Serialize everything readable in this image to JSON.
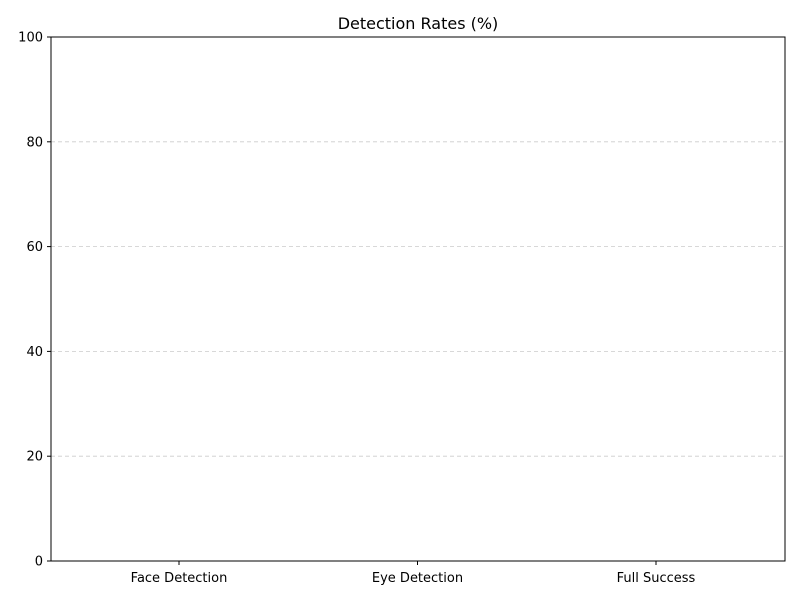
{
  "chart_data": {
    "type": "bar",
    "title": "Detection Rates (%)",
    "xlabel": "",
    "ylabel": "",
    "categories": [
      "Face Detection",
      "Eye Detection",
      "Full Success"
    ],
    "values": [
      0,
      0,
      0
    ],
    "ylim": [
      0,
      100
    ],
    "yticks": [
      0,
      20,
      40,
      60,
      80,
      100
    ],
    "grid": {
      "axis": "y",
      "style": "dashed",
      "color": "#cccccc"
    },
    "bar_color": "#4c72b0"
  }
}
